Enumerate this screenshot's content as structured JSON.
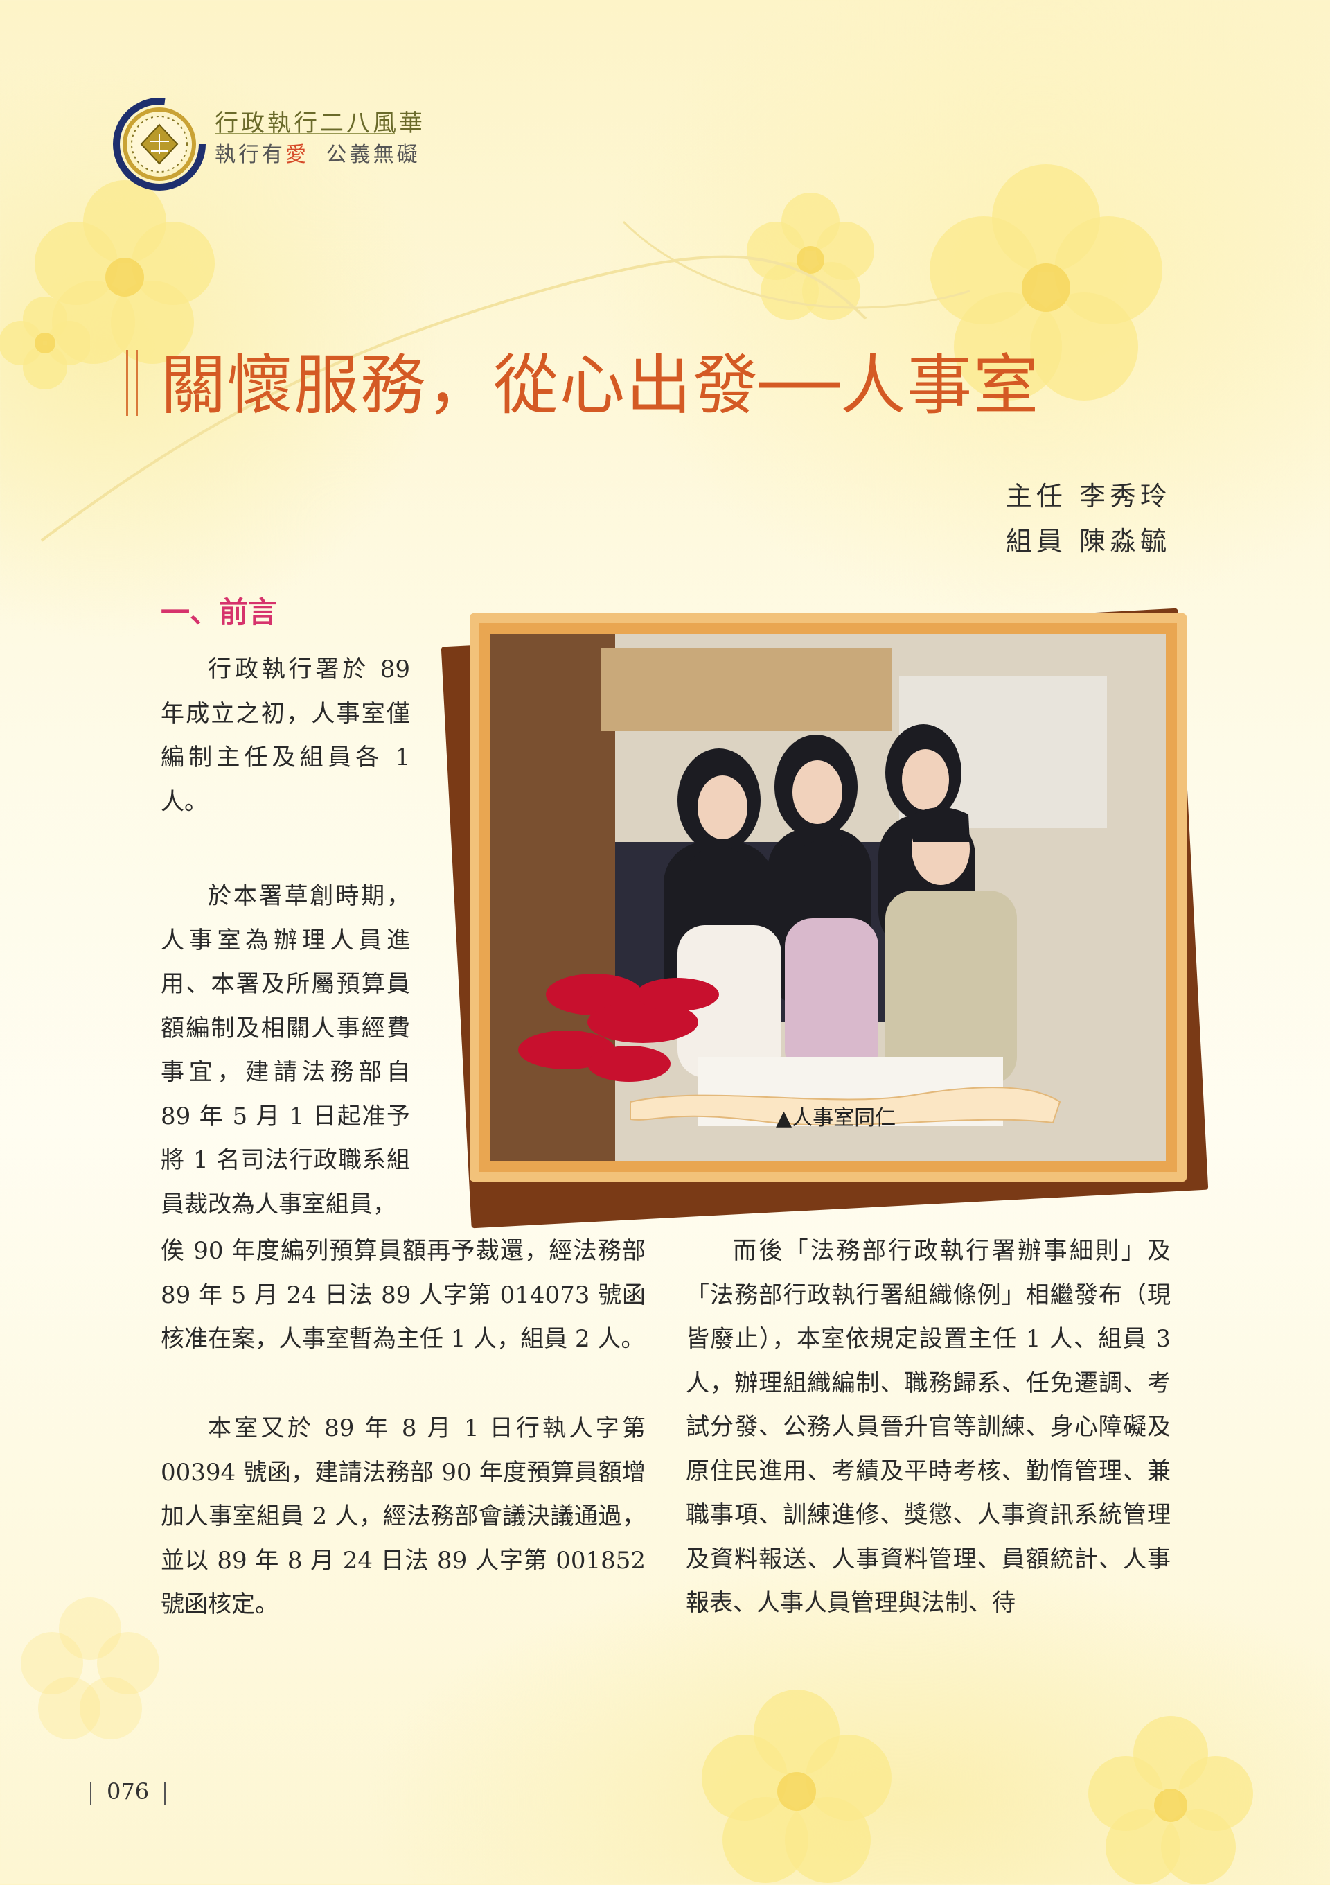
{
  "header": {
    "logo_line1": "行政執行二八風華",
    "logo_line2_a": "執行有",
    "logo_line2_love": "愛",
    "logo_line2_b": "公義無礙"
  },
  "article": {
    "title": "關懷服務，從心出發──人事室",
    "byline1": "主任  李秀玲",
    "byline2": "組員  陳淼毓",
    "section_heading": "一、前言"
  },
  "paragraphs": {
    "p1": "行政執行署於 89 年成立之初，人事室僅編制主任及組員各 1 人。",
    "p2a": "於本署草創時期，人事室為辦理人員進用、本署及所屬預算員額編制及相關人事經費事宜，建請法務部自 89 年 5 月 1 日起准予將 1 名司法行政職系組員裁改為人事室組員，",
    "p2b": "俟 90 年度編列預算員額再予裁還，經法務部 89 年 5 月 24 日法 89 人字第 014073 號函核准在案，人事室暫為主任 1 人，組員 2 人。",
    "p3": "本室又於 89 年 8 月 1 日行執人字第 00394 號函，建請法務部 90 年度預算員額增加人事室組員 2 人，經法務部會議決議通過，並以 89 年 8 月 24 日法 89 人字第 001852 號函核定。",
    "p4": "而後「法務部行政執行署辦事細則」及「法務部行政執行署組織條例」相繼發布（現皆廢止），本室依規定設置主任 1 人、組員 3 人，辦理組織編制、職務歸系、任免遷調、考試分發、公務人員晉升官等訓練、身心障礙及原住民進用、考績及平時考核、勤惰管理、兼職事項、訓練進修、獎懲、人事資訊系統管理及資料報送、人事資料管理、員額統計、人事報表、人事人員管理與法制、待"
  },
  "photo": {
    "caption": "▲人事室同仁"
  },
  "footer": {
    "page_number": "076"
  },
  "colors": {
    "title": "#d45a24",
    "section_heading": "#d6336c",
    "frame": "#e9a651",
    "background": "#fdf4c8"
  }
}
